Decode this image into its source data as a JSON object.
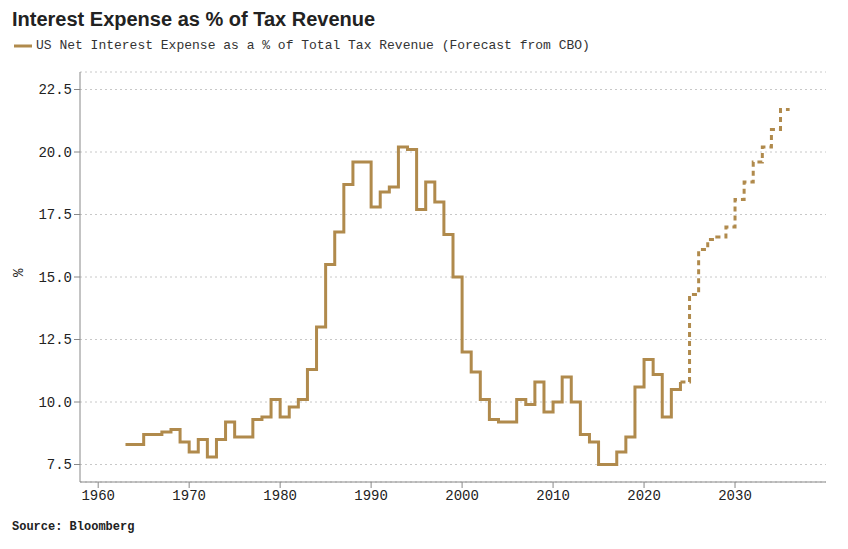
{
  "chart_data": {
    "type": "line",
    "title": "Interest Expense as % of Tax Revenue",
    "ylabel": "%",
    "source": "Source: Bloomberg",
    "x": [
      1963,
      1964,
      1965,
      1966,
      1967,
      1968,
      1969,
      1970,
      1971,
      1972,
      1973,
      1974,
      1975,
      1976,
      1977,
      1978,
      1979,
      1980,
      1981,
      1982,
      1983,
      1984,
      1985,
      1986,
      1987,
      1988,
      1989,
      1990,
      1991,
      1992,
      1993,
      1994,
      1995,
      1996,
      1997,
      1998,
      1999,
      2000,
      2001,
      2002,
      2003,
      2004,
      2005,
      2006,
      2007,
      2008,
      2009,
      2010,
      2011,
      2012,
      2013,
      2014,
      2015,
      2016,
      2017,
      2018,
      2019,
      2020,
      2021,
      2022,
      2023,
      2024,
      2025,
      2026,
      2027,
      2028,
      2029,
      2030,
      2031,
      2032,
      2033,
      2034,
      2035,
      2036
    ],
    "series": [
      {
        "name": "US Net Interest Expense as a % of Total Tax Revenue (Forecast from CBO)",
        "color": "#b08a4c",
        "line_style": "solid",
        "values": [
          8.3,
          8.3,
          8.7,
          8.7,
          8.8,
          8.9,
          8.4,
          8.0,
          8.5,
          7.8,
          8.5,
          9.2,
          8.6,
          8.6,
          9.3,
          9.4,
          10.1,
          9.4,
          9.8,
          10.1,
          11.3,
          13.0,
          15.5,
          16.8,
          18.7,
          19.6,
          19.6,
          17.8,
          18.4,
          18.6,
          20.2,
          20.1,
          17.7,
          18.8,
          18.0,
          16.7,
          15.0,
          12.0,
          11.2,
          10.1,
          9.3,
          9.2,
          9.2,
          10.1,
          9.9,
          10.8,
          9.6,
          10.0,
          11.0,
          10.0,
          8.7,
          8.4,
          7.5,
          7.5,
          8.0,
          8.6,
          10.6,
          11.7,
          11.1,
          9.4,
          10.5,
          10.8,
          null,
          null,
          null,
          null,
          null,
          null,
          null,
          null,
          null,
          null,
          null,
          null
        ]
      },
      {
        "color": "#b08a4c",
        "line_style": "dashed",
        "values": [
          null,
          null,
          null,
          null,
          null,
          null,
          null,
          null,
          null,
          null,
          null,
          null,
          null,
          null,
          null,
          null,
          null,
          null,
          null,
          null,
          null,
          null,
          null,
          null,
          null,
          null,
          null,
          null,
          null,
          null,
          null,
          null,
          null,
          null,
          null,
          null,
          null,
          null,
          null,
          null,
          null,
          null,
          null,
          null,
          null,
          null,
          null,
          null,
          null,
          null,
          null,
          null,
          null,
          null,
          null,
          null,
          null,
          null,
          null,
          null,
          null,
          10.8,
          14.3,
          16.1,
          16.5,
          16.6,
          17.0,
          18.1,
          18.8,
          19.6,
          20.2,
          20.9,
          21.7,
          21.7
        ]
      }
    ],
    "xlim": [
      1958,
      2040
    ],
    "xticks": [
      1960,
      1970,
      1980,
      1990,
      2000,
      2010,
      2020,
      2030
    ],
    "ylim": [
      6.8,
      23.2
    ],
    "yticks": [
      7.5,
      {
        "value": 10,
        "label": "10.0"
      },
      12.5,
      {
        "value": 15,
        "label": "15.0"
      },
      17.5,
      {
        "value": 20,
        "label": "20.0"
      },
      22.5
    ],
    "grid": true
  }
}
